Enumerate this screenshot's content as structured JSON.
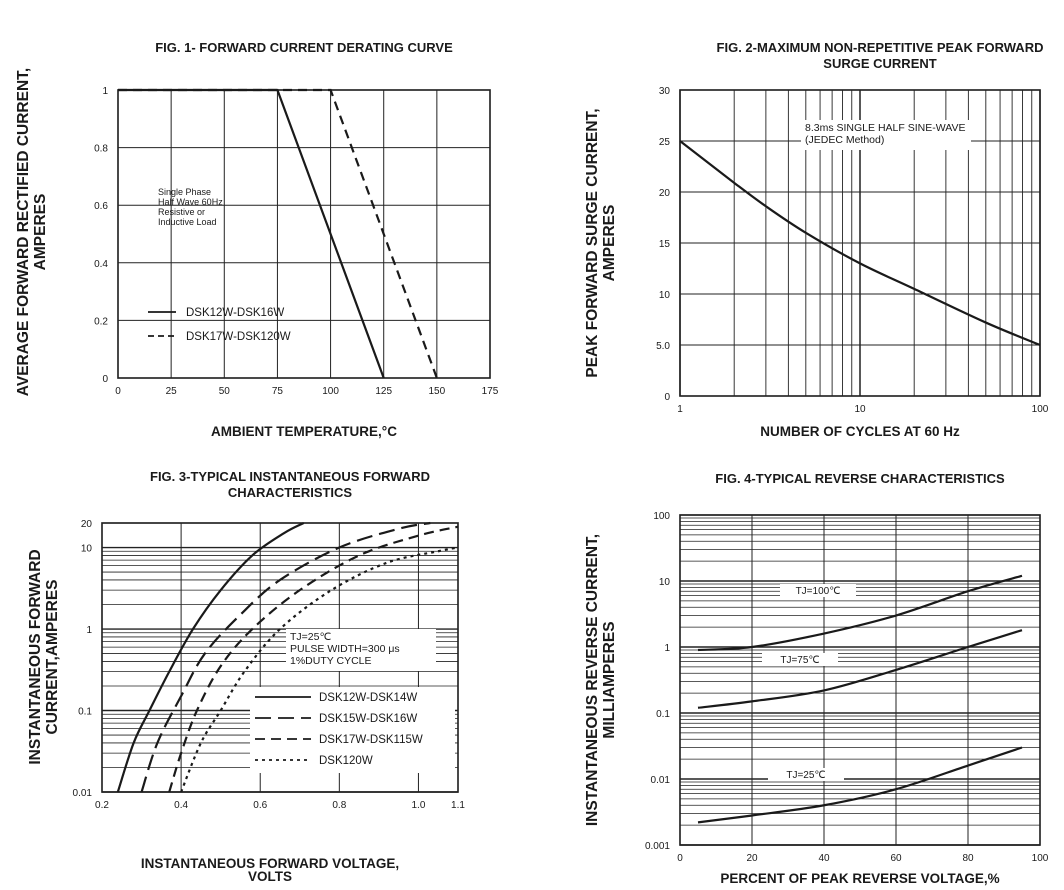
{
  "chart_data": [
    {
      "type": "line",
      "title": "FIG. 1- FORWARD CURRENT DERATING CURVE",
      "xlabel": "AMBIENT TEMPERATURE,°C",
      "ylabel": [
        "AVERAGE FORWARD RECTIFIED CURRENT,",
        "AMPERES"
      ],
      "xlim": [
        0,
        175
      ],
      "ylim": [
        0,
        1
      ],
      "x_ticks": [
        "0",
        "25",
        "50",
        "75",
        "100",
        "125",
        "150",
        "175"
      ],
      "y_ticks": [
        "0",
        "0.2",
        "0.4",
        "0.6",
        "0.8",
        "1"
      ],
      "grid": true,
      "annotation": [
        "Single Phase",
        "Half Wave 60Hz",
        "Resistive or",
        "Inductive Load"
      ],
      "legend_placement": "bottom-left",
      "series": [
        {
          "name": "DSK12W-DSK16W",
          "style": "solid",
          "x": [
            0,
            75,
            125
          ],
          "y": [
            1,
            1,
            0
          ]
        },
        {
          "name": "DSK17W-DSK120W",
          "style": "dashed",
          "x": [
            0,
            100,
            150
          ],
          "y": [
            1,
            1,
            0
          ]
        }
      ]
    },
    {
      "type": "line",
      "title": [
        "FIG. 2-MAXIMUM NON-REPETITIVE PEAK FORWARD",
        "SURGE CURRENT"
      ],
      "xlabel": "NUMBER OF CYCLES AT 60 Hz",
      "ylabel": [
        "PEAK  FORWARD SURGE CURRENT,",
        "AMPERES"
      ],
      "x_scale": "log",
      "xlim": [
        1,
        100
      ],
      "ylim": [
        0,
        30
      ],
      "x_ticks": [
        "1",
        "10",
        "100"
      ],
      "y_ticks": [
        "0",
        "5.0",
        "10",
        "15",
        "20",
        "25",
        "30"
      ],
      "grid": true,
      "annotation": [
        "8.3ms SINGLE HALF SINE-WAVE",
        "(JEDEC Method)"
      ],
      "series": [
        {
          "style": "solid",
          "x": [
            1,
            2,
            3,
            5,
            10,
            20,
            50,
            100
          ],
          "y": [
            25,
            20.9,
            18.6,
            16,
            13,
            10.5,
            7.2,
            5
          ]
        }
      ]
    },
    {
      "type": "line",
      "title": [
        "FIG. 3-TYPICAL INSTANTANEOUS FORWARD",
        "CHARACTERISTICS"
      ],
      "xlabel": [
        "INSTANTANEOUS FORWARD VOLTAGE,",
        "VOLTS"
      ],
      "ylabel": [
        "INSTANTANEOUS FORWARD",
        "CURRENT,AMPERES"
      ],
      "y_scale": "log",
      "xlim": [
        0.2,
        1.1
      ],
      "ylim": [
        0.01,
        20
      ],
      "x_ticks": [
        "0.2",
        "0.4",
        "0.6",
        "0.8",
        "1.0",
        "1.1"
      ],
      "y_ticks": [
        "0.01",
        "0.1",
        "1",
        "10",
        "20"
      ],
      "grid": true,
      "annotation": [
        "TJ=25℃",
        "PULSE WIDTH=300 μs",
        "1%DUTY CYCLE"
      ],
      "legend_placement": "bottom-right",
      "series": [
        {
          "name": "DSK12W-DSK14W",
          "style": "solid",
          "x": [
            0.24,
            0.28,
            0.32,
            0.37,
            0.43,
            0.5,
            0.58,
            0.66,
            0.71
          ],
          "y": [
            0.01,
            0.04,
            0.1,
            0.3,
            1,
            3,
            8,
            15,
            20
          ]
        },
        {
          "name": "DSK15W-DSK16W",
          "style": "long-dash",
          "x": [
            0.3,
            0.34,
            0.4,
            0.46,
            0.55,
            0.65,
            0.8,
            0.95,
            1.03
          ],
          "y": [
            0.01,
            0.04,
            0.15,
            0.5,
            1.5,
            4,
            10,
            17,
            20
          ]
        },
        {
          "name": "DSK17W-DSK115W",
          "style": "dash",
          "x": [
            0.37,
            0.4,
            0.44,
            0.5,
            0.58,
            0.7,
            0.85,
            1.0,
            1.1
          ],
          "y": [
            0.01,
            0.03,
            0.1,
            0.35,
            1,
            3,
            8,
            14,
            18
          ]
        },
        {
          "name": "DSK120W",
          "style": "dotted",
          "x": [
            0.4,
            0.45,
            0.5,
            0.56,
            0.65,
            0.78,
            0.92,
            1.05,
            1.1
          ],
          "y": [
            0.01,
            0.04,
            0.1,
            0.3,
            1,
            3,
            6.5,
            9,
            10
          ]
        }
      ]
    },
    {
      "type": "line",
      "title": "FIG. 4-TYPICAL REVERSE CHARACTERISTICS",
      "xlabel": "PERCENT OF PEAK REVERSE VOLTAGE,%",
      "ylabel": [
        "INSTANTANEOUS REVERSE CURRENT,",
        "MILLIAMPERES"
      ],
      "y_scale": "log",
      "xlim": [
        0,
        100
      ],
      "ylim": [
        0.001,
        100
      ],
      "x_ticks": [
        "0",
        "20",
        "40",
        "60",
        "80",
        "100"
      ],
      "y_ticks": [
        "0.001",
        "0.01",
        "0.1",
        "1",
        "10",
        "100"
      ],
      "grid": true,
      "series": [
        {
          "name": "TJ=100℃",
          "style": "solid",
          "x": [
            5,
            20,
            40,
            60,
            80,
            95
          ],
          "y": [
            0.9,
            1.0,
            1.6,
            3.0,
            7.0,
            12
          ]
        },
        {
          "name": "TJ=75℃",
          "style": "solid",
          "x": [
            5,
            20,
            40,
            60,
            80,
            95
          ],
          "y": [
            0.12,
            0.15,
            0.22,
            0.45,
            1.0,
            1.8
          ]
        },
        {
          "name": "TJ=25℃",
          "style": "solid",
          "x": [
            5,
            20,
            40,
            60,
            80,
            95
          ],
          "y": [
            0.0022,
            0.0028,
            0.004,
            0.007,
            0.016,
            0.03
          ]
        }
      ]
    }
  ]
}
